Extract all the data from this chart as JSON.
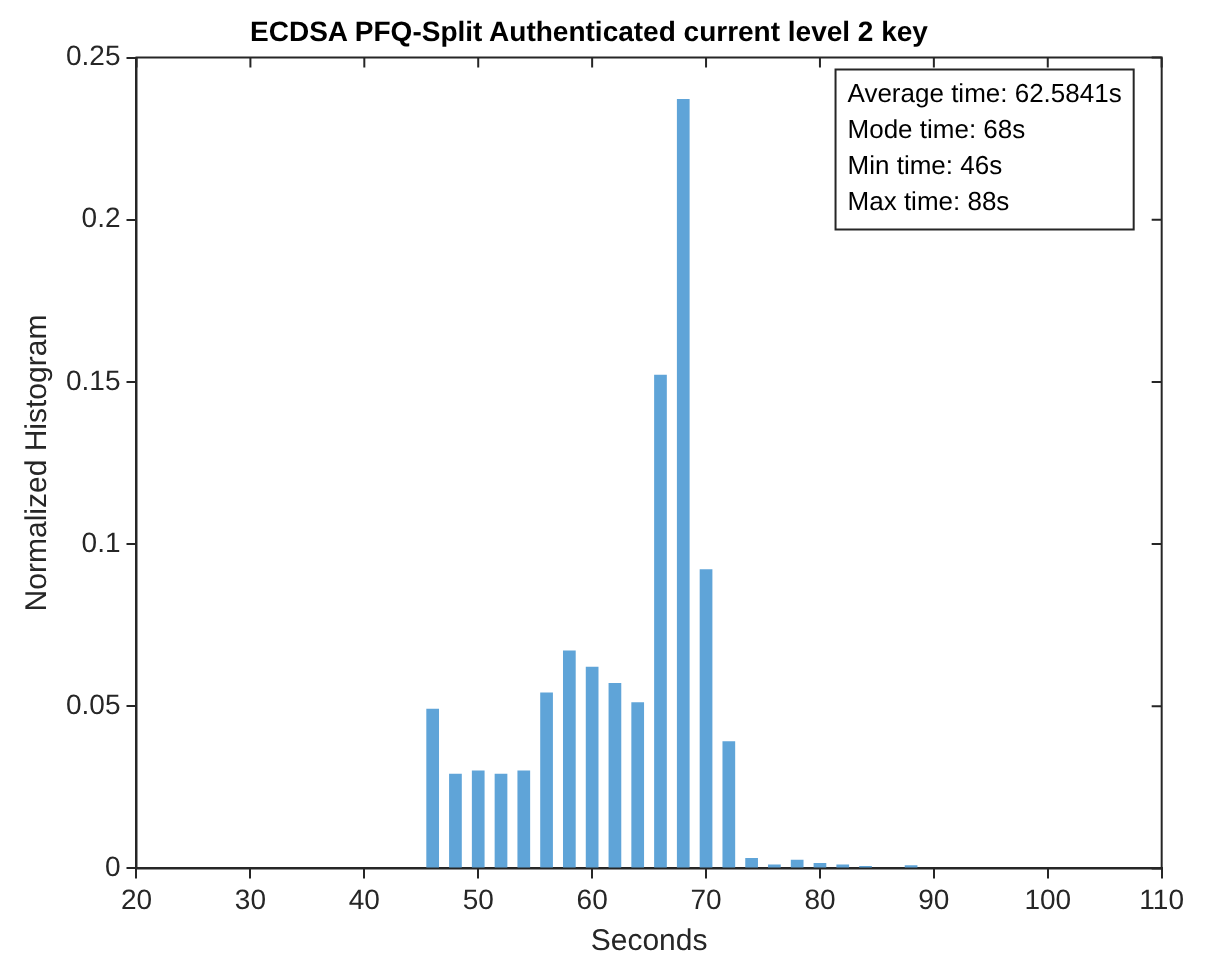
{
  "chart_data": {
    "type": "bar",
    "title": "ECDSA PFQ-Split Authenticated current level 2 key",
    "xlabel": "Seconds",
    "ylabel": "Normalized Histogram",
    "x": [
      46,
      48,
      50,
      52,
      54,
      56,
      58,
      60,
      62,
      64,
      66,
      68,
      70,
      72,
      74,
      76,
      78,
      80,
      82,
      84,
      88
    ],
    "values": [
      0.049,
      0.029,
      0.03,
      0.029,
      0.03,
      0.054,
      0.067,
      0.062,
      0.057,
      0.051,
      0.152,
      0.237,
      0.092,
      0.039,
      0.003,
      0.001,
      0.0025,
      0.0015,
      0.001,
      0.0005,
      0.0008
    ],
    "color": "#5fa4d8",
    "xlim": [
      20,
      110
    ],
    "xticks": [
      20,
      30,
      40,
      50,
      60,
      70,
      80,
      90,
      100,
      110
    ],
    "ylim": [
      0,
      0.25
    ],
    "yticks": [
      0,
      0.05,
      0.1,
      0.15,
      0.2,
      0.25
    ],
    "grid": false,
    "legend": false,
    "annotations": [
      "Average time: 62.5841s",
      "Mode time: 68s",
      "Min time: 46s",
      "Max time: 88s"
    ]
  }
}
